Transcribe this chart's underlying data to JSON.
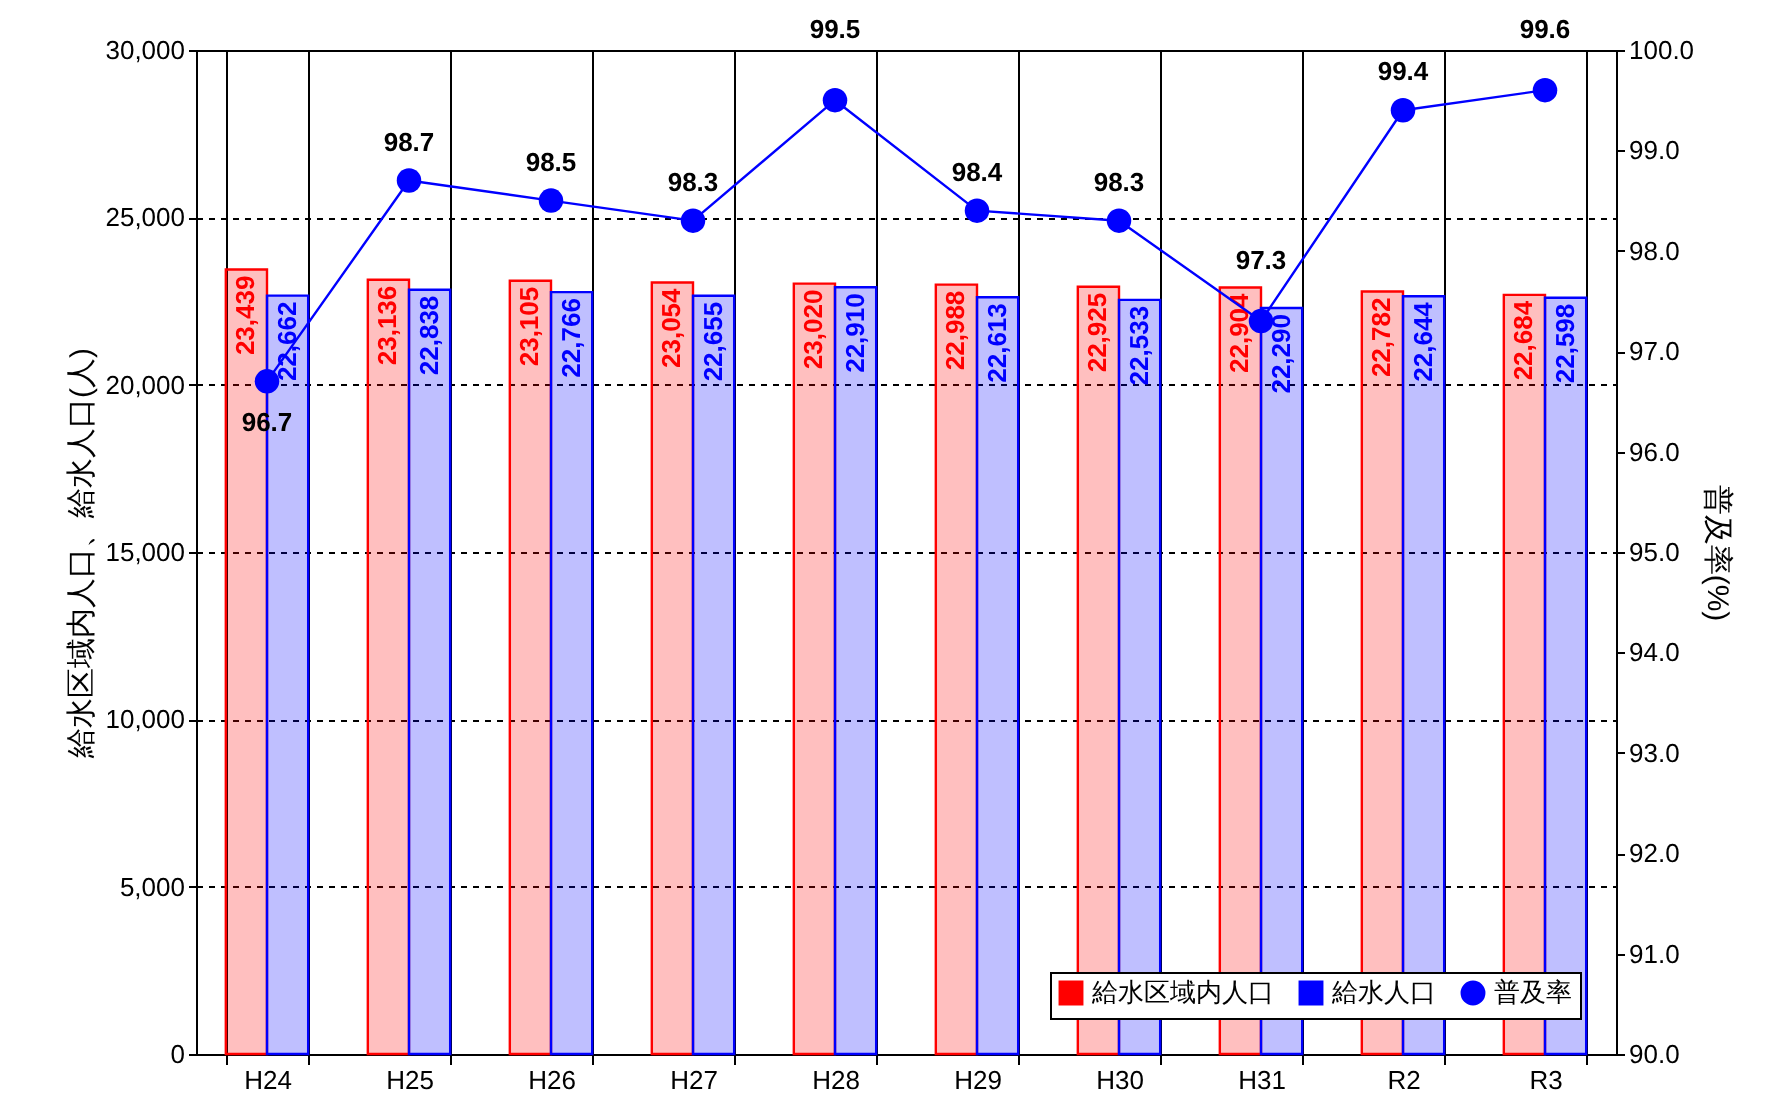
{
  "chart_data": {
    "type": "bar",
    "xlabel": null,
    "ylabel": "給水区域内人口、給水人口(人)",
    "y2label": "普及率(%)",
    "categories": [
      "H24",
      "H25",
      "H26",
      "H27",
      "H28",
      "H29",
      "H30",
      "H31",
      "R2",
      "R3"
    ],
    "series": [
      {
        "name": "給水区域内人口",
        "color": "#ff0000",
        "values": [
          23439,
          23136,
          23105,
          23054,
          23020,
          22988,
          22925,
          22904,
          22782,
          22684
        ],
        "value_labels": [
          "23,439",
          "23,136",
          "23,105",
          "23,054",
          "23,020",
          "22,988",
          "22,925",
          "22,904",
          "22,782",
          "22,684"
        ]
      },
      {
        "name": "給水人口",
        "color": "#0000ff",
        "values": [
          22662,
          22838,
          22766,
          22655,
          22910,
          22613,
          22533,
          22290,
          22644,
          22598
        ],
        "value_labels": [
          "22,662",
          "22,838",
          "22,766",
          "22,655",
          "22,910",
          "22,613",
          "22,533",
          "22,290",
          "22,644",
          "22,598"
        ]
      },
      {
        "name": "普及率",
        "type": "line",
        "axis": "y2",
        "color": "#0000ff",
        "marker": "circle",
        "values": [
          96.7,
          98.7,
          98.5,
          98.3,
          99.5,
          98.4,
          98.3,
          97.3,
          99.4,
          99.6
        ],
        "value_labels": [
          "96.7",
          "98.7",
          "98.5",
          "98.3",
          "99.5",
          "98.4",
          "98.3",
          "97.3",
          "99.4",
          "99.6"
        ]
      }
    ],
    "ylim": [
      0,
      30000
    ],
    "yticks": [
      0,
      {
        "value": 5000,
        "label": "5,000"
      },
      {
        "value": 10000,
        "label": "10,000"
      },
      {
        "value": 15000,
        "label": "15,000"
      },
      {
        "value": 20000,
        "label": "20,000"
      },
      {
        "value": 25000,
        "label": "25,000"
      },
      {
        "value": 30000,
        "label": "30,000"
      }
    ],
    "y2lim": [
      90,
      100
    ],
    "y2ticks": [
      {
        "value": 90,
        "label": "90.0"
      },
      {
        "value": 91,
        "label": "91.0"
      },
      {
        "value": 92,
        "label": "92.0"
      },
      {
        "value": 93,
        "label": "93.0"
      },
      {
        "value": 94,
        "label": "94.0"
      },
      {
        "value": 95,
        "label": "95.0"
      },
      {
        "value": 96,
        "label": "96.0"
      },
      {
        "value": 97,
        "label": "97.0"
      },
      {
        "value": 98,
        "label": "98.0"
      },
      {
        "value": 99,
        "label": "99.0"
      },
      {
        "value": 100,
        "label": "100.0"
      }
    ],
    "grid": true,
    "legend": "bottom right",
    "line_style": "solid"
  }
}
